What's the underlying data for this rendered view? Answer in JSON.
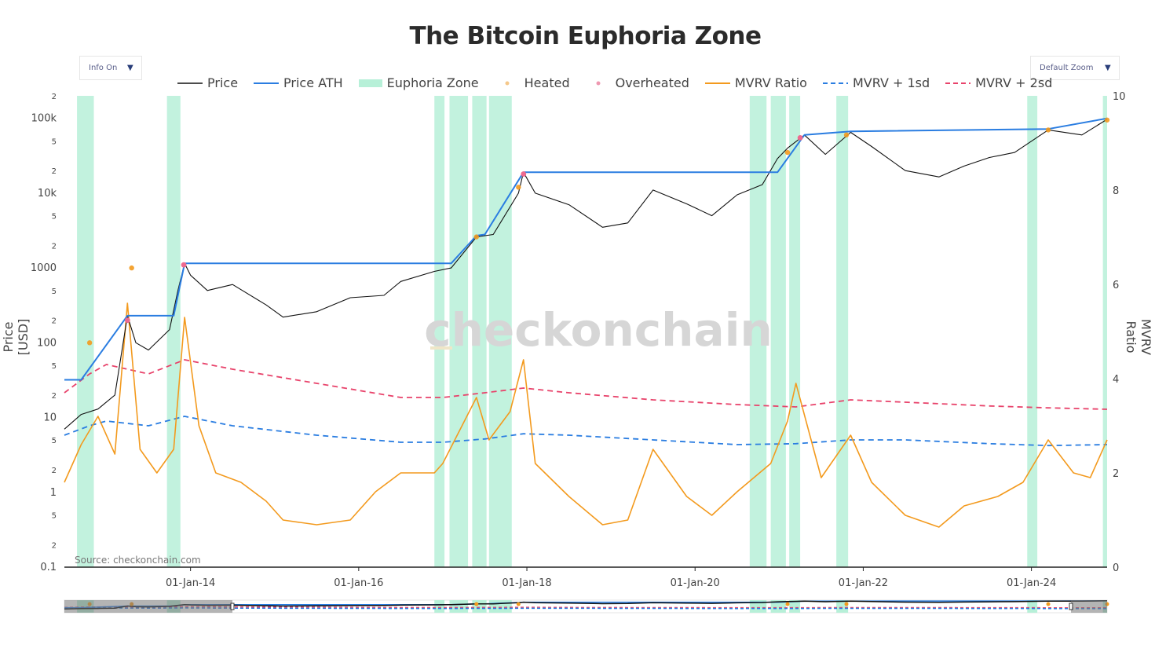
{
  "title": "The Bitcoin Euphoria Zone",
  "controls": {
    "info": "Info On",
    "zoom": "Default Zoom"
  },
  "icons": {
    "dropdown": "chevron-down-icon"
  },
  "watermark": "checkonchain",
  "source": "Source: checkonchain.com",
  "colors": {
    "price": "#111111",
    "ath": "#2a7de1",
    "zone": "#b7f0d8",
    "heated": "#f5c88a",
    "overheated": "#ee6a8f",
    "mvrv": "#f39a1e",
    "sd1": "#2a7de1",
    "sd2": "#e8436b"
  },
  "chart_data": {
    "type": "line",
    "title": "The Bitcoin Euphoria Zone",
    "xlabel": "",
    "ylabel": "Price [USD]",
    "y2label": "MVRV Ratio",
    "yscale": "log",
    "ylim": [
      0.1,
      200000
    ],
    "y2lim": [
      0,
      10
    ],
    "xlim": [
      2012.5,
      2024.9
    ],
    "x_ticks": [
      "01-Jan-14",
      "01-Jan-16",
      "01-Jan-18",
      "01-Jan-20",
      "01-Jan-22",
      "01-Jan-24"
    ],
    "y_ticks": [
      "0.1",
      "2",
      "5",
      "1",
      "2",
      "5",
      "10",
      "2",
      "5",
      "100",
      "2",
      "5",
      "1000",
      "2",
      "5",
      "10k",
      "2",
      "5",
      "100k",
      "2"
    ],
    "y2_ticks": [
      "0",
      "2",
      "4",
      "6",
      "8",
      "10"
    ],
    "legend": [
      "Price",
      "Price ATH",
      "Euphoria Zone",
      "Heated",
      "Overheated",
      "MVRV Ratio",
      "MVRV + 1sd",
      "MVRV + 2sd"
    ],
    "legend_position": "top",
    "grid": false,
    "series": [
      {
        "name": "Price",
        "axis": "left",
        "points": [
          [
            2012.5,
            7
          ],
          [
            2012.7,
            11
          ],
          [
            2012.9,
            13
          ],
          [
            2013.1,
            20
          ],
          [
            2013.25,
            230
          ],
          [
            2013.35,
            100
          ],
          [
            2013.5,
            80
          ],
          [
            2013.75,
            150
          ],
          [
            2013.85,
            500
          ],
          [
            2013.93,
            1150
          ],
          [
            2014.0,
            800
          ],
          [
            2014.2,
            500
          ],
          [
            2014.5,
            600
          ],
          [
            2014.9,
            320
          ],
          [
            2015.1,
            220
          ],
          [
            2015.5,
            260
          ],
          [
            2015.9,
            400
          ],
          [
            2016.3,
            430
          ],
          [
            2016.5,
            660
          ],
          [
            2016.9,
            900
          ],
          [
            2017.1,
            1000
          ],
          [
            2017.4,
            2600
          ],
          [
            2017.6,
            2800
          ],
          [
            2017.9,
            10000
          ],
          [
            2017.96,
            19000
          ],
          [
            2018.1,
            10000
          ],
          [
            2018.5,
            7000
          ],
          [
            2018.9,
            3500
          ],
          [
            2019.2,
            4000
          ],
          [
            2019.5,
            11000
          ],
          [
            2019.9,
            7200
          ],
          [
            2020.2,
            5000
          ],
          [
            2020.5,
            9500
          ],
          [
            2020.8,
            13000
          ],
          [
            2020.98,
            29000
          ],
          [
            2021.1,
            40000
          ],
          [
            2021.3,
            60000
          ],
          [
            2021.55,
            33000
          ],
          [
            2021.85,
            65000
          ],
          [
            2022.1,
            42000
          ],
          [
            2022.5,
            20000
          ],
          [
            2022.9,
            16500
          ],
          [
            2023.2,
            23000
          ],
          [
            2023.5,
            30000
          ],
          [
            2023.8,
            35000
          ],
          [
            2024.2,
            70000
          ],
          [
            2024.6,
            60000
          ],
          [
            2024.9,
            97000
          ]
        ]
      },
      {
        "name": "Price ATH",
        "axis": "left",
        "points": [
          [
            2012.5,
            32
          ],
          [
            2012.7,
            32
          ],
          [
            2013.25,
            230
          ],
          [
            2013.8,
            230
          ],
          [
            2013.93,
            1150
          ],
          [
            2017.1,
            1150
          ],
          [
            2017.4,
            2700
          ],
          [
            2017.5,
            2800
          ],
          [
            2017.96,
            19000
          ],
          [
            2020.98,
            19000
          ],
          [
            2021.3,
            60000
          ],
          [
            2021.85,
            67000
          ],
          [
            2024.2,
            72000
          ],
          [
            2024.9,
            100000
          ]
        ]
      },
      {
        "name": "MVRV Ratio",
        "axis": "right",
        "points": [
          [
            2012.5,
            1.8
          ],
          [
            2012.7,
            2.6
          ],
          [
            2012.9,
            3.2
          ],
          [
            2013.1,
            2.4
          ],
          [
            2013.25,
            5.6
          ],
          [
            2013.4,
            2.5
          ],
          [
            2013.6,
            2.0
          ],
          [
            2013.8,
            2.5
          ],
          [
            2013.93,
            5.3
          ],
          [
            2014.1,
            3.0
          ],
          [
            2014.3,
            2.0
          ],
          [
            2014.6,
            1.8
          ],
          [
            2014.9,
            1.4
          ],
          [
            2015.1,
            1.0
          ],
          [
            2015.5,
            0.9
          ],
          [
            2015.9,
            1.0
          ],
          [
            2016.2,
            1.6
          ],
          [
            2016.5,
            2.0
          ],
          [
            2016.9,
            2.0
          ],
          [
            2017.0,
            2.2
          ],
          [
            2017.4,
            3.6
          ],
          [
            2017.55,
            2.7
          ],
          [
            2017.8,
            3.3
          ],
          [
            2017.96,
            4.4
          ],
          [
            2018.1,
            2.2
          ],
          [
            2018.5,
            1.5
          ],
          [
            2018.9,
            0.9
          ],
          [
            2019.2,
            1.0
          ],
          [
            2019.5,
            2.5
          ],
          [
            2019.9,
            1.5
          ],
          [
            2020.2,
            1.1
          ],
          [
            2020.5,
            1.6
          ],
          [
            2020.9,
            2.2
          ],
          [
            2021.1,
            3.1
          ],
          [
            2021.2,
            3.9
          ],
          [
            2021.5,
            1.9
          ],
          [
            2021.85,
            2.8
          ],
          [
            2022.1,
            1.8
          ],
          [
            2022.5,
            1.1
          ],
          [
            2022.9,
            0.85
          ],
          [
            2023.2,
            1.3
          ],
          [
            2023.6,
            1.5
          ],
          [
            2023.9,
            1.8
          ],
          [
            2024.2,
            2.7
          ],
          [
            2024.5,
            2.0
          ],
          [
            2024.7,
            1.9
          ],
          [
            2024.9,
            2.7
          ]
        ]
      },
      {
        "name": "MVRV + 1sd",
        "axis": "right",
        "points": [
          [
            2012.5,
            2.8
          ],
          [
            2012.8,
            3.0
          ],
          [
            2013.0,
            3.1
          ],
          [
            2013.5,
            3.0
          ],
          [
            2013.93,
            3.2
          ],
          [
            2014.5,
            3.0
          ],
          [
            2015.5,
            2.8
          ],
          [
            2016.5,
            2.65
          ],
          [
            2017.0,
            2.65
          ],
          [
            2017.5,
            2.72
          ],
          [
            2017.96,
            2.83
          ],
          [
            2018.5,
            2.8
          ],
          [
            2019.5,
            2.7
          ],
          [
            2020.5,
            2.6
          ],
          [
            2021.2,
            2.62
          ],
          [
            2021.85,
            2.7
          ],
          [
            2022.5,
            2.7
          ],
          [
            2023.5,
            2.62
          ],
          [
            2024.2,
            2.58
          ],
          [
            2024.9,
            2.6
          ]
        ]
      },
      {
        "name": "MVRV + 2sd",
        "axis": "right",
        "points": [
          [
            2012.5,
            3.7
          ],
          [
            2012.8,
            4.1
          ],
          [
            2013.0,
            4.3
          ],
          [
            2013.5,
            4.1
          ],
          [
            2013.93,
            4.4
          ],
          [
            2014.5,
            4.2
          ],
          [
            2015.5,
            3.9
          ],
          [
            2016.5,
            3.6
          ],
          [
            2017.0,
            3.6
          ],
          [
            2017.5,
            3.7
          ],
          [
            2017.96,
            3.8
          ],
          [
            2018.5,
            3.7
          ],
          [
            2019.5,
            3.55
          ],
          [
            2020.5,
            3.45
          ],
          [
            2021.2,
            3.4
          ],
          [
            2021.85,
            3.55
          ],
          [
            2022.5,
            3.5
          ],
          [
            2023.5,
            3.42
          ],
          [
            2024.2,
            3.38
          ],
          [
            2024.9,
            3.35
          ]
        ]
      }
    ],
    "euphoria_zones": [
      [
        2012.65,
        2012.85
      ],
      [
        2013.72,
        2013.88
      ],
      [
        2016.9,
        2017.02
      ],
      [
        2017.08,
        2017.3
      ],
      [
        2017.35,
        2017.52
      ],
      [
        2017.55,
        2017.82
      ],
      [
        2020.65,
        2020.85
      ],
      [
        2020.9,
        2021.08
      ],
      [
        2021.12,
        2021.25
      ],
      [
        2021.68,
        2021.82
      ],
      [
        2023.95,
        2024.07
      ],
      [
        2024.85,
        2024.9
      ]
    ],
    "heated": [
      [
        2012.8,
        100
      ],
      [
        2013.3,
        1000
      ],
      [
        2017.4,
        2600
      ],
      [
        2017.9,
        12000
      ],
      [
        2021.1,
        35000
      ],
      [
        2021.8,
        60000
      ],
      [
        2024.2,
        70000
      ],
      [
        2024.9,
        95000
      ]
    ],
    "overheated": [
      [
        2013.25,
        200
      ],
      [
        2013.92,
        1100
      ],
      [
        2017.96,
        18000
      ],
      [
        2021.25,
        55000
      ]
    ]
  }
}
